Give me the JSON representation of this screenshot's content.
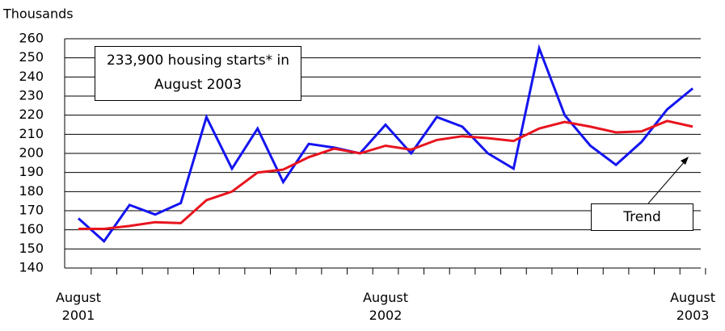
{
  "chart_data": {
    "type": "line",
    "y_label": "Thousands",
    "annotation": "233,900 housing starts* in August 2003",
    "categories": [
      "August 2001",
      null,
      null,
      null,
      null,
      null,
      null,
      null,
      null,
      null,
      null,
      null,
      "August 2002",
      null,
      null,
      null,
      null,
      null,
      null,
      null,
      null,
      null,
      null,
      null,
      "August 2003"
    ],
    "series": [
      {
        "color": "#1414f0",
        "values": [
          166,
          154,
          173,
          168,
          174,
          219,
          192,
          213,
          185,
          205,
          203,
          200,
          215,
          200,
          219,
          214,
          200,
          192,
          255,
          220,
          204,
          194,
          206,
          223,
          234
        ]
      },
      {
        "name": "Trend",
        "color": "#e8141e",
        "values": [
          160.5,
          160.5,
          162,
          164,
          163.5,
          175.5,
          180,
          190,
          191.5,
          198,
          202.5,
          200,
          204,
          202,
          207,
          209,
          208,
          206.5,
          213,
          216.5,
          214,
          211,
          211.5,
          217,
          214
        ]
      }
    ],
    "ylim": [
      140,
      260
    ],
    "yticks": [
      140,
      150,
      160,
      170,
      180,
      190,
      200,
      210,
      220,
      230,
      240,
      250,
      260
    ],
    "grid": true
  }
}
